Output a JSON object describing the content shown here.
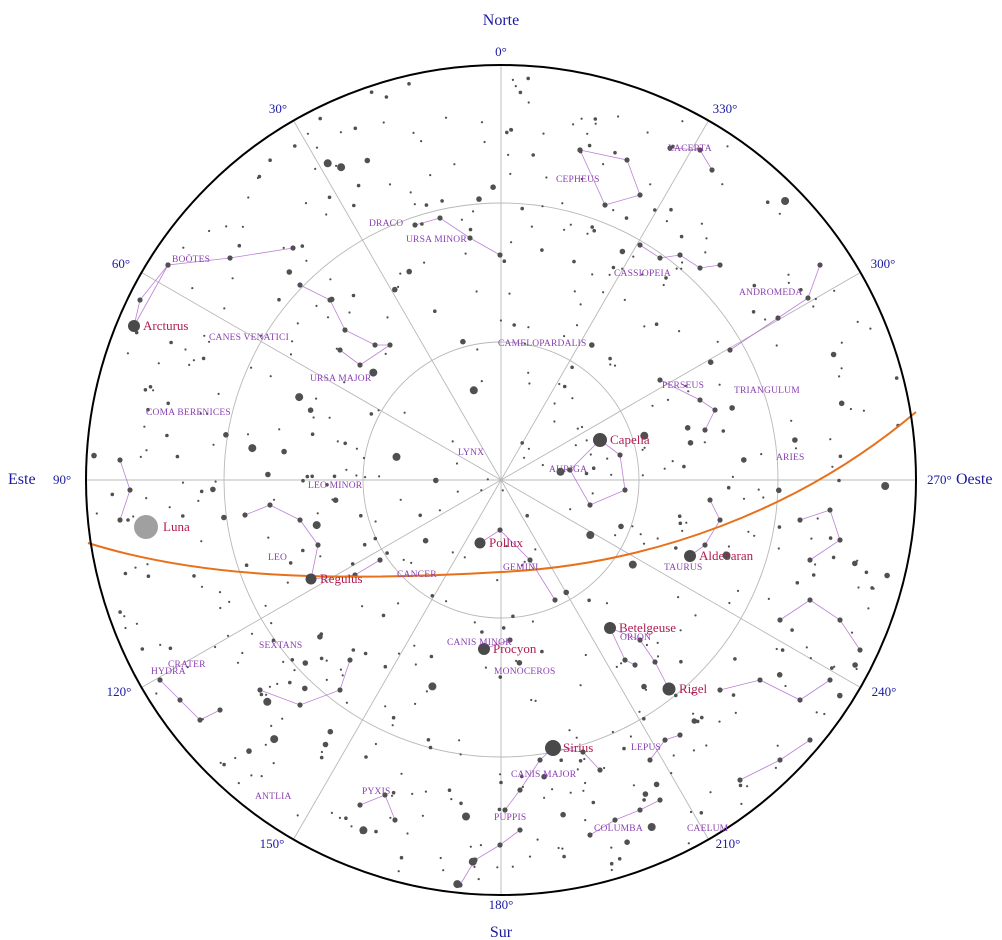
{
  "directions": {
    "north": "Norte",
    "south": "Sur",
    "east": "Este",
    "west": "Oeste"
  },
  "azimuth_labels": [
    "0°",
    "30°",
    "60°",
    "90°",
    "120°",
    "150°",
    "180°",
    "210°",
    "240°",
    "270°",
    "300°",
    "330°"
  ],
  "constellations": [
    "LACERTA",
    "CEPHEUS",
    "DRACO",
    "URSA MINOR",
    "BOÖTES",
    "CASSIOPEIA",
    "ANDROMEDA",
    "CANES VENATICI",
    "CAMELOPARDALIS",
    "URSA MAJOR",
    "PERSEUS",
    "TRIANGULUM",
    "COMA BERENICES",
    "LYNX",
    "AURIGA",
    "ARIES",
    "LEO MINOR",
    "LEO",
    "CANCER",
    "GEMINI",
    "TAURUS",
    "SEXTANS",
    "CANIS MINOR",
    "ORION",
    "CRATER",
    "HYDRA",
    "MONOCEROS",
    "LEPUS",
    "CANIS MAJOR",
    "ANTLIA",
    "PYXIS",
    "PUPPIS",
    "COLUMBA",
    "CAELUM"
  ],
  "named_stars": [
    "Arcturus",
    "Capella",
    "Pollux",
    "Aldebaran",
    "Regulus",
    "Betelgeuse",
    "Procyon",
    "Rigel",
    "Sirius"
  ],
  "moon_label": "Luna",
  "colors": {
    "ecliptic": "#e8701a",
    "horizon": "#000000",
    "grid": "#b8b8b8",
    "constellation_lines": "#b06ad0",
    "stars": "#505050",
    "moon": "#a0a0a0"
  }
}
